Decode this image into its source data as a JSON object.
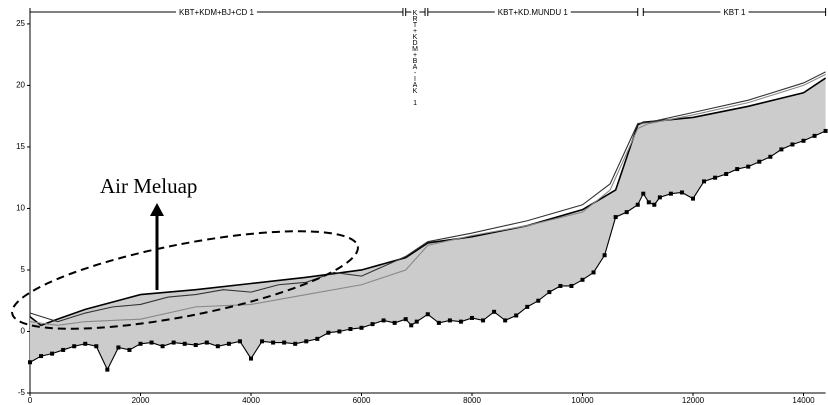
{
  "chart_data": {
    "type": "line",
    "annotation": "Air Meluap",
    "xlim": [
      0,
      14400
    ],
    "ylim": [
      -5,
      26
    ],
    "xticks": [
      0,
      2000,
      4000,
      6000,
      8000,
      10000,
      12000,
      14000
    ],
    "yticks": [
      -5,
      0,
      5,
      10,
      15,
      20,
      25
    ],
    "reaches": [
      {
        "label": "KBT+KDM+BJ+CD 1",
        "start": 0,
        "end": 6750,
        "vertical": false
      },
      {
        "label": "KRT+KDM+BA-IAK 1",
        "start": 6800,
        "end": 7150,
        "vertical": true
      },
      {
        "label": "KBT+KD.MUNDU 1",
        "start": 7200,
        "end": 11000,
        "vertical": false
      },
      {
        "label": "KBT 1",
        "start": 11100,
        "end": 14400,
        "vertical": false
      }
    ],
    "series": [
      {
        "color": "#000000",
        "marker": "square",
        "x": [
          0,
          200,
          400,
          600,
          800,
          1000,
          1200,
          1400,
          1600,
          1800,
          2000,
          2200,
          2400,
          2600,
          2800,
          3000,
          3200,
          3400,
          3600,
          3800,
          4000,
          4200,
          4400,
          4600,
          4800,
          5000,
          5200,
          5400,
          5600,
          5800,
          6000,
          6200,
          6400,
          6600,
          6800,
          6900,
          7000,
          7200,
          7400,
          7600,
          7800,
          8000,
          8200,
          8400,
          8600,
          8800,
          9000,
          9200,
          9400,
          9600,
          9800,
          10000,
          10200,
          10400,
          10600,
          10800,
          11000,
          11100,
          11200,
          11300,
          11400,
          11600,
          11800,
          12000,
          12200,
          12400,
          12600,
          12800,
          13000,
          13200,
          13400,
          13600,
          13800,
          14000,
          14200,
          14400
        ],
        "values": [
          -2.5,
          -2,
          -1.8,
          -1.5,
          -1.2,
          -1,
          -1.2,
          -3.1,
          -1.3,
          -1.5,
          -1,
          -0.9,
          -1.2,
          -0.9,
          -1,
          -1.1,
          -0.9,
          -1.2,
          -1,
          -0.8,
          -2.2,
          -0.8,
          -0.9,
          -0.9,
          -1,
          -0.8,
          -0.6,
          -0.1,
          0,
          0.2,
          0.3,
          0.6,
          0.9,
          0.7,
          1,
          0.5,
          0.8,
          1.4,
          0.7,
          0.9,
          0.8,
          1.1,
          0.9,
          1.6,
          0.9,
          1.3,
          2,
          2.5,
          3.2,
          3.7,
          3.7,
          4.2,
          4.8,
          6.2,
          9.3,
          9.7,
          10.3,
          11.2,
          10.5,
          10.3,
          10.9,
          11.2,
          11.3,
          10.8,
          12.2,
          12.5,
          12.8,
          13.2,
          13.4,
          13.8,
          14.2,
          14.8,
          15.2,
          15.5,
          15.9,
          16.3
        ]
      },
      {
        "color": "#000000",
        "fill": "#cccccc",
        "x": [
          0,
          200,
          500,
          1000,
          2000,
          3000,
          4000,
          5000,
          6000,
          6800,
          7200,
          8000,
          9000,
          10000,
          10600,
          11000,
          11100,
          12000,
          13000,
          14000,
          14400
        ],
        "values": [
          1.2,
          0.5,
          1,
          1.8,
          3,
          3.4,
          3.9,
          4.4,
          5,
          6,
          7.2,
          7.7,
          8.6,
          9.9,
          11.5,
          16.8,
          17,
          17.4,
          18.3,
          19.4,
          20.6
        ]
      },
      {
        "color": "#333333",
        "x": [
          0,
          500,
          1000,
          1500,
          2000,
          2500,
          3000,
          3500,
          4000,
          4500,
          5000,
          5500,
          6000,
          6500,
          6800,
          7200,
          8000,
          9000,
          10000,
          10500,
          11000,
          11200,
          12000,
          13000,
          14000,
          14400
        ],
        "values": [
          1.5,
          0.8,
          1.5,
          2,
          2.2,
          2.8,
          3,
          3.4,
          3.2,
          3.8,
          4,
          4.8,
          4.5,
          5.5,
          6.1,
          7.3,
          8,
          9,
          10.3,
          12,
          16.9,
          17,
          17.8,
          18.8,
          20.2,
          21.1
        ]
      },
      {
        "color": "#888888",
        "x": [
          0,
          500,
          1000,
          2000,
          3000,
          4000,
          5000,
          6000,
          6800,
          7200,
          8000,
          9000,
          10000,
          10500,
          11000,
          11200,
          12000,
          13000,
          14000,
          14400
        ],
        "values": [
          0.8,
          0.5,
          0.8,
          1,
          2,
          2.2,
          3,
          3.8,
          5,
          7,
          7.8,
          8.6,
          9.7,
          11.5,
          16.5,
          16.9,
          17.6,
          18.6,
          20,
          20.9
        ]
      }
    ]
  }
}
